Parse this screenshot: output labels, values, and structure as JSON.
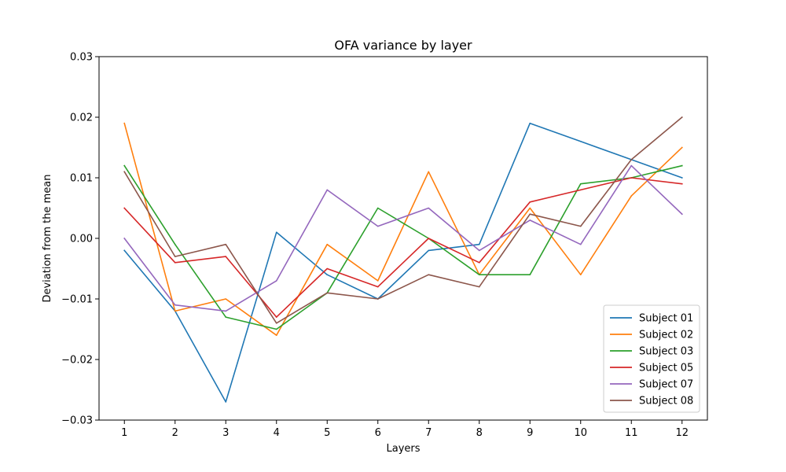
{
  "chart_data": {
    "type": "line",
    "title": "OFA variance by layer",
    "xlabel": "Layers",
    "ylabel": "Deviation from the mean",
    "x": [
      1,
      2,
      3,
      4,
      5,
      6,
      7,
      8,
      9,
      10,
      11,
      12
    ],
    "xlim": [
      0.5,
      12.5
    ],
    "ylim": [
      -0.03,
      0.03
    ],
    "yticks": [
      -0.03,
      -0.02,
      -0.01,
      0.0,
      0.01,
      0.02,
      0.03
    ],
    "ytick_labels": [
      "−0.03",
      "−0.02",
      "−0.01",
      "0.00",
      "0.01",
      "0.02",
      "0.03"
    ],
    "grid": false,
    "legend_position": "bottom-right",
    "series": [
      {
        "name": "Subject 01",
        "color": "#1f77b4",
        "values": [
          -0.002,
          -0.012,
          -0.027,
          0.001,
          -0.006,
          -0.01,
          -0.002,
          -0.001,
          0.019,
          0.016,
          0.013,
          0.01
        ]
      },
      {
        "name": "Subject 02",
        "color": "#ff7f0e",
        "values": [
          0.019,
          -0.012,
          -0.01,
          -0.016,
          -0.001,
          -0.007,
          0.011,
          -0.006,
          0.005,
          -0.006,
          0.007,
          0.015
        ]
      },
      {
        "name": "Subject 03",
        "color": "#2ca02c",
        "values": [
          0.012,
          -0.001,
          -0.013,
          -0.015,
          -0.009,
          0.005,
          0.0,
          -0.006,
          -0.006,
          0.009,
          0.01,
          0.012
        ]
      },
      {
        "name": "Subject 05",
        "color": "#d62728",
        "values": [
          0.005,
          -0.004,
          -0.003,
          -0.013,
          -0.005,
          -0.008,
          0.0,
          -0.004,
          0.006,
          0.008,
          0.01,
          0.009
        ]
      },
      {
        "name": "Subject 07",
        "color": "#9467bd",
        "values": [
          0.0,
          -0.011,
          -0.012,
          -0.007,
          0.008,
          0.002,
          0.005,
          -0.002,
          0.003,
          -0.001,
          0.012,
          0.004
        ]
      },
      {
        "name": "Subject 08",
        "color": "#8c564b",
        "values": [
          0.011,
          -0.003,
          -0.001,
          -0.014,
          -0.009,
          -0.01,
          -0.006,
          -0.008,
          0.004,
          0.002,
          0.013,
          0.02
        ]
      }
    ]
  }
}
